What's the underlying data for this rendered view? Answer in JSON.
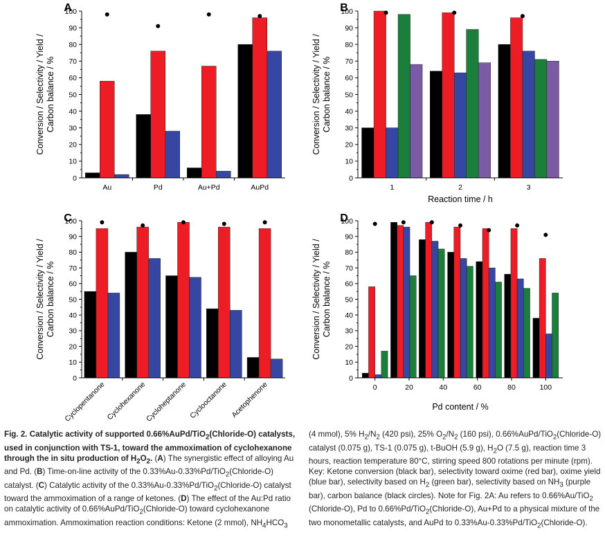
{
  "colors": {
    "conversion": "#000000",
    "oxime_selectivity": "#ee1c25",
    "oxime_yield": "#3547a3",
    "h2_selectivity": "#1a7f3a",
    "nh3_selectivity": "#7b5aa6",
    "carbon_balance": "#000000"
  },
  "chart_data": [
    {
      "panel": "A",
      "type": "bar",
      "ylabel_lines": [
        "Conversion / Selectivity / Yield /",
        "Carbon balance / %"
      ],
      "xlabel": "",
      "ylim": [
        0,
        100
      ],
      "yticks": [
        "0",
        "10",
        "20",
        "30",
        "40",
        "50",
        "60",
        "70",
        "80",
        "90",
        "100"
      ],
      "categories": [
        "Au",
        "Pd",
        "Au+Pd",
        "AuPd"
      ],
      "series": [
        {
          "key": "conversion",
          "values": [
            3,
            38,
            6,
            80
          ]
        },
        {
          "key": "oxime_selectivity",
          "values": [
            58,
            76,
            67,
            96
          ]
        },
        {
          "key": "oxime_yield",
          "values": [
            2,
            28,
            4,
            76
          ]
        }
      ],
      "carbon_balance": [
        98,
        91,
        98,
        97
      ]
    },
    {
      "panel": "B",
      "type": "bar",
      "ylabel_lines": [
        "Conversion / Selectivity / Yield /",
        "Carbon balance / %"
      ],
      "xlabel": "Reaction time / h",
      "ylim": [
        0,
        100
      ],
      "yticks": [
        "0",
        "10",
        "20",
        "30",
        "40",
        "50",
        "60",
        "70",
        "80",
        "90",
        "100"
      ],
      "categories": [
        "1",
        "2",
        "3"
      ],
      "series": [
        {
          "key": "conversion",
          "values": [
            30,
            64,
            80
          ]
        },
        {
          "key": "oxime_selectivity",
          "values": [
            100,
            99,
            96
          ]
        },
        {
          "key": "oxime_yield",
          "values": [
            30,
            63,
            76
          ]
        },
        {
          "key": "h2_selectivity",
          "values": [
            98,
            89,
            71
          ]
        },
        {
          "key": "nh3_selectivity",
          "values": [
            68,
            69,
            70
          ]
        }
      ],
      "carbon_balance": [
        99,
        99,
        97
      ]
    },
    {
      "panel": "C",
      "type": "bar",
      "ylabel_lines": [
        "Conversion / Selectivity / Yield /",
        "Carbon balance / %"
      ],
      "xlabel": "",
      "ylim": [
        0,
        100
      ],
      "yticks": [
        "0",
        "10",
        "20",
        "30",
        "40",
        "50",
        "60",
        "70",
        "80",
        "90",
        "100"
      ],
      "categories": [
        "Cyclopentanone",
        "Cyclohexanone",
        "Cycloheptanone",
        "Cyclooctanone",
        "Acetophenone"
      ],
      "series": [
        {
          "key": "conversion",
          "values": [
            55,
            80,
            65,
            44,
            13
          ]
        },
        {
          "key": "oxime_selectivity",
          "values": [
            95,
            96,
            99,
            96,
            95
          ]
        },
        {
          "key": "oxime_yield",
          "values": [
            54,
            76,
            64,
            43,
            12
          ]
        }
      ],
      "carbon_balance": [
        99,
        97,
        99,
        98,
        99
      ]
    },
    {
      "panel": "D",
      "type": "bar",
      "ylabel_lines": [
        "Conversion / Selectivity / Yield /",
        "Carbon balance / %"
      ],
      "xlabel": "Pd content / %",
      "ylim": [
        0,
        100
      ],
      "xlim": [
        -10,
        110
      ],
      "yticks": [
        "0",
        "10",
        "20",
        "30",
        "40",
        "50",
        "60",
        "70",
        "80",
        "90",
        "100"
      ],
      "xticks": [
        0,
        20,
        40,
        60,
        80,
        100
      ],
      "xtick_labels": [
        "0",
        "20",
        "40",
        "60",
        "80",
        "100"
      ],
      "x": [
        0,
        16.7,
        33.3,
        50,
        66.7,
        83.3,
        100
      ],
      "series": [
        {
          "key": "conversion",
          "values": [
            3,
            99,
            88,
            80,
            74,
            66,
            38
          ]
        },
        {
          "key": "oxime_selectivity",
          "values": [
            58,
            97,
            99,
            96,
            95,
            95,
            76
          ]
        },
        {
          "key": "oxime_yield",
          "values": [
            2,
            96,
            87,
            76,
            70,
            63,
            28
          ]
        },
        {
          "key": "h2_selectivity",
          "values": [
            17,
            65,
            82,
            71,
            61,
            57,
            54
          ]
        }
      ],
      "carbon_balance": [
        98,
        99,
        99,
        97,
        94,
        97,
        91
      ]
    }
  ],
  "caption": {
    "lead_html": "Fig. 2. Catalytic activity of supported 0.66%AuPd/TiO<sub>2</sub>(Chloride-O) catalysts, used in conjunction with TS-1, toward the ammoximation of cyclohexanone through the in situ production of H<sub>2</sub>O<sub>2</sub>.",
    "col1_html": " (<b>A</b>) The synergistic effect of alloying Au and Pd. (<b>B</b>) Time-on-line activity of the 0.33%Au-0.33%Pd/TiO<sub>2</sub>(Chloride-O) catalyst. (<b>C</b>) Catalytic activity of the 0.33%Au-0.33%Pd/TiO<sub>2</sub>(Chloride-O) catalyst toward the ammoximation of a range of ketones. (<b>D</b>) The effect of the Au:Pd ratio on catalytic activity of 0.66%AuPd/TiO<sub>2</sub>(Chloride-O) toward cyclohexanone ammoximation. Ammoximation reaction conditions: Ketone (2 mmol), NH<sub>4</sub>HCO<sub>3</sub>",
    "col2_html": "(4 mmol), 5% H<sub>2</sub>/N<sub>2</sub> (420 psi), 25% O<sub>2</sub>/N<sub>2</sub> (160 psi), 0.66%AuPd/TiO<sub>2</sub>(Chloride-O) catalyst (0.075 g), TS-1 (0.075 g), t-BuOH (5.9 g), H<sub>2</sub>O (7.5 g), reaction time 3 hours, reaction temperature 80°C, stirring speed 800 rotations per minute (rpm). Key: Ketone conversion (black bar), selectivity toward oxime (red bar), oxime yield (blue bar), selectivity based on H<sub>2</sub> (green bar), selectivity based on NH<sub>3</sub> (purple bar), carbon balance (black circles). Note for Fig. 2A: Au refers to 0.66%Au/TiO<sub>2</sub> (Chloride-O), Pd to 0.66%Pd/TiO<sub>2</sub>(Chloride-O), Au+Pd to a physical mixture of the two monometallic catalysts, and AuPd to 0.33%Au-0.33%Pd/TiO<sub>2</sub>(Chloride-O)."
  }
}
